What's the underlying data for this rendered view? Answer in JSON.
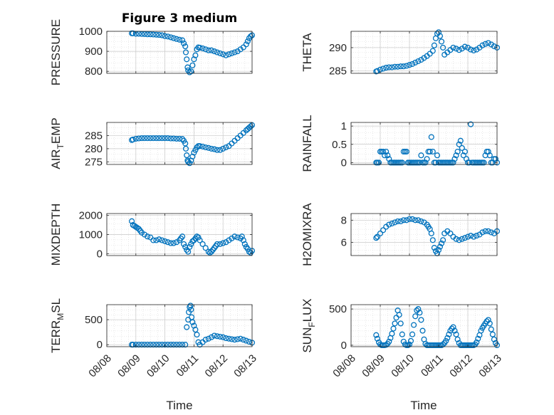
{
  "figure": {
    "title": "Figure 3 medium",
    "xlabel": "Time",
    "marker_color": "#0072BD"
  },
  "chart_data": [
    {
      "type": "scatter",
      "ylabel": "PRESSURE",
      "ylabel_sub": "",
      "ylabel_tail": "",
      "xlim": [
        0,
        5
      ],
      "x_ticks": [
        "08/08",
        "08/09",
        "08/10",
        "08/11",
        "08/12",
        "08/13"
      ],
      "ylim": [
        790,
        1000
      ],
      "y_ticks": [
        800,
        900,
        1000
      ],
      "grid": true,
      "x": [
        0.86,
        0.9,
        1.0,
        1.1,
        1.2,
        1.3,
        1.4,
        1.5,
        1.6,
        1.7,
        1.8,
        1.9,
        2.0,
        2.1,
        2.2,
        2.3,
        2.4,
        2.5,
        2.6,
        2.65,
        2.7,
        2.72,
        2.75,
        2.78,
        2.8,
        2.85,
        2.9,
        2.95,
        3.0,
        3.05,
        3.1,
        3.15,
        3.2,
        3.3,
        3.4,
        3.5,
        3.6,
        3.7,
        3.8,
        3.9,
        4.0,
        4.1,
        4.2,
        4.3,
        4.4,
        4.5,
        4.6,
        4.7,
        4.8,
        4.85,
        4.9,
        4.95,
        5.0
      ],
      "y": [
        990,
        990,
        988,
        988,
        987,
        986,
        985,
        985,
        984,
        983,
        982,
        980,
        976,
        974,
        970,
        966,
        962,
        958,
        955,
        940,
        925,
        895,
        860,
        820,
        805,
        795,
        800,
        830,
        860,
        880,
        910,
        920,
        918,
        915,
        910,
        905,
        905,
        900,
        895,
        890,
        885,
        880,
        885,
        890,
        895,
        900,
        910,
        920,
        935,
        950,
        965,
        975,
        980
      ]
    },
    {
      "type": "scatter",
      "ylabel": "THETA",
      "ylabel_sub": "",
      "ylabel_tail": "",
      "xlim": [
        0,
        5
      ],
      "x_ticks": [
        "08/08",
        "08/09",
        "08/10",
        "08/11",
        "08/12",
        "08/13"
      ],
      "ylim": [
        284.5,
        293.5
      ],
      "y_ticks": [
        285,
        290
      ],
      "grid": true,
      "x": [
        0.86,
        0.9,
        1.0,
        1.1,
        1.2,
        1.3,
        1.4,
        1.5,
        1.6,
        1.7,
        1.8,
        1.9,
        2.0,
        2.1,
        2.2,
        2.3,
        2.4,
        2.5,
        2.6,
        2.7,
        2.8,
        2.85,
        2.9,
        2.95,
        3.0,
        3.05,
        3.1,
        3.15,
        3.2,
        3.3,
        3.4,
        3.5,
        3.6,
        3.7,
        3.8,
        3.9,
        4.0,
        4.1,
        4.2,
        4.3,
        4.4,
        4.5,
        4.6,
        4.7,
        4.8,
        4.9,
        5.0
      ],
      "y": [
        284.9,
        285.0,
        285.3,
        285.5,
        285.7,
        285.8,
        285.8,
        285.9,
        285.9,
        286.0,
        286.0,
        286.1,
        286.3,
        286.5,
        286.8,
        287.1,
        287.4,
        287.8,
        288.2,
        288.7,
        289.3,
        290.5,
        292.0,
        293.0,
        293.3,
        292.5,
        291.3,
        290.0,
        288.5,
        289.0,
        289.5,
        290.0,
        289.8,
        289.5,
        289.8,
        290.2,
        290.0,
        289.6,
        289.4,
        289.6,
        290.0,
        290.5,
        290.8,
        291.0,
        290.7,
        290.3,
        290.0
      ]
    },
    {
      "type": "scatter",
      "ylabel": "AIR",
      "ylabel_sub": "T",
      "ylabel_tail": "EMP",
      "xlim": [
        0,
        5
      ],
      "x_ticks": [
        "08/08",
        "08/09",
        "08/10",
        "08/11",
        "08/12",
        "08/13"
      ],
      "ylim": [
        274,
        290
      ],
      "y_ticks": [
        275,
        280,
        285
      ],
      "grid": true,
      "x": [
        0.86,
        0.9,
        1.0,
        1.1,
        1.2,
        1.3,
        1.4,
        1.5,
        1.6,
        1.7,
        1.8,
        1.9,
        2.0,
        2.1,
        2.2,
        2.3,
        2.4,
        2.5,
        2.6,
        2.65,
        2.7,
        2.72,
        2.75,
        2.78,
        2.8,
        2.85,
        2.9,
        2.95,
        3.0,
        3.05,
        3.1,
        3.15,
        3.2,
        3.3,
        3.4,
        3.5,
        3.6,
        3.7,
        3.8,
        3.9,
        4.0,
        4.1,
        4.2,
        4.3,
        4.4,
        4.5,
        4.6,
        4.7,
        4.8,
        4.85,
        4.9,
        4.95,
        5.0
      ],
      "y": [
        283.3,
        283.5,
        283.8,
        283.9,
        284.0,
        284.0,
        284.0,
        284.0,
        284.0,
        284.0,
        284.0,
        284.0,
        284.0,
        284.0,
        283.9,
        283.9,
        283.8,
        283.8,
        283.7,
        283.0,
        282.0,
        280.0,
        277.5,
        275.5,
        275.0,
        274.5,
        275.5,
        277.0,
        278.5,
        279.5,
        280.5,
        281.0,
        281.0,
        280.8,
        280.5,
        280.3,
        280.0,
        279.8,
        279.5,
        279.5,
        280.0,
        280.5,
        281.0,
        282.0,
        283.0,
        284.0,
        285.0,
        286.0,
        287.0,
        287.5,
        288.0,
        288.5,
        289.0
      ]
    },
    {
      "type": "scatter",
      "ylabel": "RAINFALL",
      "ylabel_sub": "",
      "ylabel_tail": "",
      "xlim": [
        0,
        5
      ],
      "x_ticks": [
        "08/08",
        "08/09",
        "08/10",
        "08/11",
        "08/12",
        "08/13"
      ],
      "ylim": [
        -0.05,
        1.1
      ],
      "y_ticks": [
        0,
        0.5,
        1
      ],
      "grid": true,
      "x": [
        0.86,
        0.9,
        0.95,
        1.0,
        1.05,
        1.1,
        1.15,
        1.2,
        1.25,
        1.3,
        1.35,
        1.4,
        1.45,
        1.5,
        1.55,
        1.6,
        1.65,
        1.7,
        1.75,
        1.8,
        1.85,
        1.9,
        1.95,
        2.0,
        2.05,
        2.1,
        2.15,
        2.2,
        2.25,
        2.3,
        2.35,
        2.4,
        2.45,
        2.5,
        2.55,
        2.6,
        2.65,
        2.7,
        2.75,
        2.8,
        2.85,
        2.9,
        2.95,
        3.0,
        3.05,
        3.1,
        3.15,
        3.2,
        3.25,
        3.3,
        3.35,
        3.4,
        3.45,
        3.5,
        3.55,
        3.6,
        3.65,
        3.7,
        3.75,
        3.8,
        3.85,
        3.9,
        3.95,
        4.0,
        4.05,
        4.1,
        4.15,
        4.2,
        4.25,
        4.3,
        4.35,
        4.4,
        4.45,
        4.5,
        4.55,
        4.6,
        4.65,
        4.7,
        4.75,
        4.8,
        4.85,
        4.9,
        4.95,
        5.0
      ],
      "y": [
        0,
        0,
        0,
        0.3,
        0.3,
        0.3,
        0.2,
        0.3,
        0.2,
        0.1,
        0,
        0,
        0,
        0,
        0,
        0,
        0,
        0,
        0,
        0.3,
        0.3,
        0.3,
        0,
        0,
        0,
        0,
        0,
        0,
        0,
        0,
        0,
        0.2,
        0,
        0,
        0,
        0.1,
        0.3,
        0.3,
        0.7,
        0.3,
        0,
        0,
        0.2,
        0,
        0,
        0,
        0,
        0,
        0,
        0,
        0,
        0,
        0,
        0,
        0.1,
        0.2,
        0.3,
        0.5,
        0.6,
        0.4,
        0.2,
        0.3,
        0.1,
        0,
        0,
        1.05,
        0,
        0,
        0,
        0,
        0,
        0,
        0,
        0,
        0,
        0.2,
        0.3,
        0.3,
        0.2,
        0,
        0,
        0.1,
        0.1,
        0
      ]
    },
    {
      "type": "scatter",
      "ylabel": "MIXDEPTH",
      "ylabel_sub": "",
      "ylabel_tail": "",
      "xlim": [
        0,
        5
      ],
      "x_ticks": [
        "08/08",
        "08/09",
        "08/10",
        "08/11",
        "08/12",
        "08/13"
      ],
      "ylim": [
        -100,
        2100
      ],
      "y_ticks": [
        0,
        1000,
        2000
      ],
      "grid": true,
      "x": [
        0.86,
        0.9,
        0.95,
        1.0,
        1.05,
        1.1,
        1.15,
        1.2,
        1.3,
        1.4,
        1.5,
        1.6,
        1.7,
        1.8,
        1.9,
        2.0,
        2.1,
        2.2,
        2.3,
        2.4,
        2.5,
        2.55,
        2.6,
        2.65,
        2.7,
        2.75,
        2.8,
        2.85,
        2.9,
        2.95,
        3.0,
        3.05,
        3.1,
        3.15,
        3.2,
        3.3,
        3.4,
        3.5,
        3.55,
        3.6,
        3.65,
        3.7,
        3.75,
        3.8,
        3.9,
        4.0,
        4.1,
        4.2,
        4.3,
        4.4,
        4.5,
        4.6,
        4.65,
        4.7,
        4.75,
        4.8,
        4.85,
        4.9,
        4.95,
        5.0
      ],
      "y": [
        1700,
        1500,
        1450,
        1400,
        1350,
        1300,
        1200,
        1100,
        1000,
        900,
        850,
        700,
        700,
        750,
        700,
        650,
        600,
        550,
        550,
        600,
        700,
        800,
        900,
        500,
        350,
        200,
        100,
        350,
        500,
        650,
        700,
        800,
        900,
        850,
        700,
        500,
        300,
        100,
        50,
        100,
        200,
        300,
        400,
        500,
        500,
        550,
        600,
        700,
        800,
        900,
        850,
        800,
        900,
        700,
        500,
        350,
        250,
        100,
        50,
        150
      ]
    },
    {
      "type": "scatter",
      "ylabel": "H2OMIXRA",
      "ylabel_sub": "",
      "ylabel_tail": "",
      "xlim": [
        0,
        5
      ],
      "x_ticks": [
        "08/08",
        "08/09",
        "08/10",
        "08/11",
        "08/12",
        "08/13"
      ],
      "ylim": [
        4.8,
        8.6
      ],
      "y_ticks": [
        6,
        8
      ],
      "grid": true,
      "x": [
        0.86,
        0.9,
        1.0,
        1.1,
        1.2,
        1.3,
        1.4,
        1.5,
        1.6,
        1.7,
        1.8,
        1.9,
        2.0,
        2.1,
        2.2,
        2.3,
        2.4,
        2.5,
        2.6,
        2.65,
        2.7,
        2.75,
        2.8,
        2.85,
        2.9,
        2.95,
        3.0,
        3.05,
        3.1,
        3.15,
        3.2,
        3.3,
        3.4,
        3.5,
        3.6,
        3.7,
        3.8,
        3.9,
        4.0,
        4.1,
        4.2,
        4.3,
        4.4,
        4.5,
        4.6,
        4.7,
        4.8,
        4.9,
        5.0
      ],
      "y": [
        6.4,
        6.5,
        6.8,
        7.1,
        7.4,
        7.6,
        7.7,
        7.8,
        7.9,
        7.9,
        8.0,
        8.0,
        8.1,
        8.1,
        8.0,
        8.0,
        7.9,
        7.8,
        7.6,
        7.4,
        7.2,
        6.8,
        6.2,
        5.5,
        5.2,
        5.0,
        5.3,
        5.6,
        5.9,
        6.2,
        6.8,
        7.0,
        6.8,
        6.5,
        6.3,
        6.2,
        6.3,
        6.4,
        6.5,
        6.6,
        6.5,
        6.6,
        6.7,
        6.9,
        7.0,
        7.0,
        6.9,
        6.8,
        7.0
      ]
    },
    {
      "type": "scatter",
      "ylabel": "TERR",
      "ylabel_sub": "M",
      "ylabel_tail": "SL",
      "xlim": [
        0,
        5
      ],
      "x_ticks": [
        "08/08",
        "08/09",
        "08/10",
        "08/11",
        "08/12",
        "08/13"
      ],
      "ylim": [
        -40,
        800
      ],
      "y_ticks": [
        0,
        500
      ],
      "grid": true,
      "x": [
        0.86,
        0.9,
        1.0,
        1.1,
        1.2,
        1.3,
        1.4,
        1.5,
        1.6,
        1.7,
        1.8,
        1.9,
        2.0,
        2.1,
        2.2,
        2.3,
        2.4,
        2.5,
        2.6,
        2.7,
        2.75,
        2.8,
        2.82,
        2.85,
        2.88,
        2.9,
        2.92,
        2.95,
        3.0,
        3.05,
        3.1,
        3.15,
        3.2,
        3.3,
        3.4,
        3.5,
        3.6,
        3.7,
        3.8,
        3.9,
        4.0,
        4.1,
        4.2,
        4.3,
        4.4,
        4.5,
        4.6,
        4.7,
        4.8,
        4.9,
        5.0
      ],
      "y": [
        0,
        0,
        0,
        0,
        0,
        0,
        0,
        0,
        0,
        0,
        0,
        0,
        0,
        0,
        0,
        0,
        0,
        0,
        0,
        0,
        350,
        500,
        650,
        750,
        780,
        700,
        550,
        450,
        380,
        300,
        200,
        50,
        0,
        50,
        100,
        120,
        150,
        180,
        170,
        160,
        150,
        130,
        120,
        110,
        100,
        110,
        120,
        100,
        80,
        60,
        40
      ]
    },
    {
      "type": "scatter",
      "ylabel": "SUN",
      "ylabel_sub": "F",
      "ylabel_tail": "LUX",
      "xlim": [
        0,
        5
      ],
      "x_ticks": [
        "08/08",
        "08/09",
        "08/10",
        "08/11",
        "08/12",
        "08/13"
      ],
      "ylim": [
        -20,
        560
      ],
      "y_ticks": [
        0,
        500
      ],
      "grid": true,
      "x": [
        0.86,
        0.9,
        0.95,
        1.0,
        1.05,
        1.1,
        1.15,
        1.2,
        1.25,
        1.3,
        1.35,
        1.4,
        1.45,
        1.5,
        1.55,
        1.6,
        1.65,
        1.7,
        1.75,
        1.8,
        1.85,
        1.9,
        1.95,
        2.0,
        2.05,
        2.1,
        2.15,
        2.2,
        2.25,
        2.3,
        2.35,
        2.4,
        2.45,
        2.5,
        2.55,
        2.6,
        2.65,
        2.7,
        2.75,
        2.8,
        2.85,
        2.9,
        2.95,
        3.0,
        3.05,
        3.1,
        3.15,
        3.2,
        3.25,
        3.3,
        3.35,
        3.4,
        3.45,
        3.5,
        3.55,
        3.6,
        3.65,
        3.7,
        3.75,
        3.8,
        3.85,
        3.9,
        3.95,
        4.0,
        4.05,
        4.1,
        4.15,
        4.2,
        4.25,
        4.3,
        4.35,
        4.4,
        4.45,
        4.5,
        4.55,
        4.6,
        4.65,
        4.7,
        4.75,
        4.8,
        4.85,
        4.9,
        4.95,
        5.0
      ],
      "y": [
        140,
        90,
        40,
        10,
        0,
        0,
        0,
        5,
        20,
        50,
        100,
        160,
        230,
        300,
        380,
        480,
        420,
        300,
        150,
        50,
        10,
        0,
        0,
        10,
        60,
        150,
        280,
        400,
        480,
        500,
        450,
        350,
        200,
        80,
        20,
        0,
        0,
        0,
        0,
        0,
        0,
        0,
        0,
        0,
        0,
        0,
        10,
        30,
        60,
        100,
        150,
        200,
        230,
        250,
        200,
        150,
        80,
        30,
        0,
        0,
        0,
        0,
        0,
        0,
        0,
        0,
        0,
        0,
        10,
        40,
        90,
        140,
        200,
        240,
        270,
        300,
        330,
        350,
        300,
        220,
        150,
        80,
        30,
        0
      ]
    }
  ]
}
